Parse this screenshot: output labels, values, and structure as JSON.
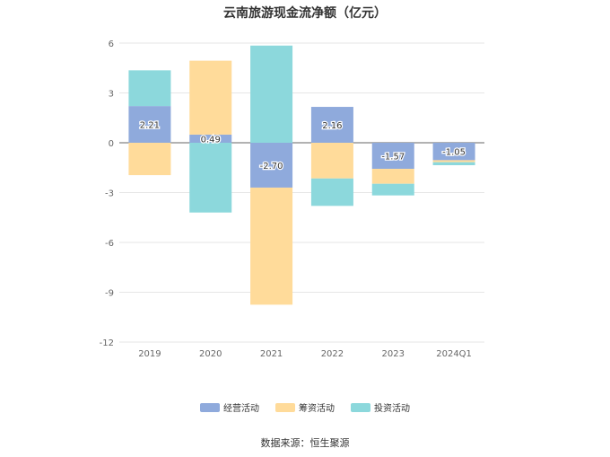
{
  "chart_data": {
    "type": "bar",
    "stacked": true,
    "title": "云南旅游现金流净额（亿元）",
    "categories": [
      "2019",
      "2020",
      "2021",
      "2022",
      "2023",
      "2024Q1"
    ],
    "series": [
      {
        "name": "经营活动",
        "color": "#8faadc",
        "values": [
          2.21,
          0.49,
          -2.7,
          2.16,
          -1.57,
          -1.05
        ]
      },
      {
        "name": "筹资活动",
        "color": "#ffdb9a",
        "values": [
          -1.95,
          4.45,
          -7.05,
          -2.15,
          -0.9,
          -0.12
        ]
      },
      {
        "name": "投资活动",
        "color": "#8cd8dc",
        "values": [
          2.15,
          -4.2,
          5.85,
          -1.65,
          -0.7,
          -0.18
        ]
      }
    ],
    "data_labels": [
      "2.21",
      "0.49",
      "-2.70",
      "2.16",
      "-1.57",
      "-1.05"
    ],
    "y_ticks": [
      6,
      3,
      0,
      -3,
      -6,
      -9,
      -12
    ],
    "ylim": [
      -12,
      6
    ],
    "grid": true,
    "legend_position": "bottom"
  },
  "source": "数据来源：恒生聚源"
}
